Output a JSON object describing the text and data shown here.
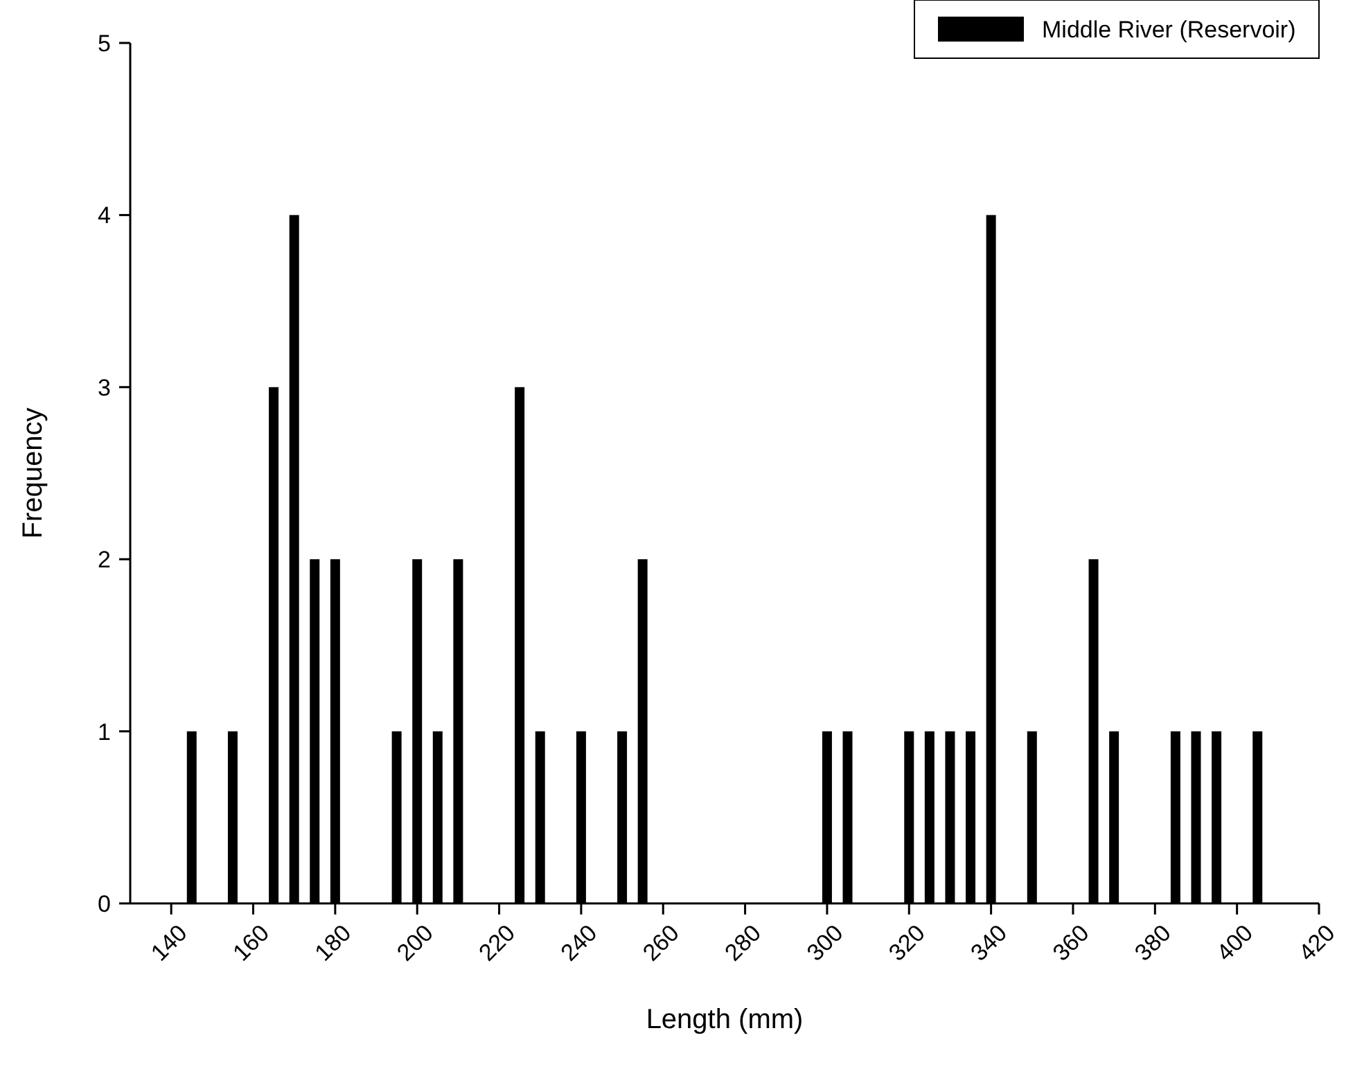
{
  "chart_data": {
    "type": "bar",
    "xlabel": "Length (mm)",
    "ylabel": "Frequency",
    "x": [
      145,
      155,
      165,
      170,
      175,
      180,
      195,
      200,
      205,
      210,
      225,
      230,
      240,
      250,
      255,
      300,
      305,
      320,
      325,
      330,
      335,
      340,
      350,
      365,
      370,
      385,
      390,
      395,
      405
    ],
    "series": [
      {
        "name": "Middle River (Reservoir)",
        "color": "#000000",
        "values": [
          1,
          1,
          3,
          4,
          2,
          2,
          1,
          2,
          1,
          2,
          3,
          1,
          1,
          1,
          2,
          1,
          1,
          1,
          1,
          1,
          1,
          4,
          1,
          2,
          1,
          1,
          1,
          1,
          1
        ]
      }
    ],
    "xlim": [
      130,
      420
    ],
    "xticks": [
      140,
      160,
      180,
      200,
      220,
      240,
      260,
      280,
      300,
      320,
      340,
      360,
      380,
      400,
      420
    ],
    "ylim": [
      0,
      5
    ],
    "yticks": [
      0,
      1,
      2,
      3,
      4,
      5
    ],
    "grid": false,
    "legend": "top right"
  }
}
